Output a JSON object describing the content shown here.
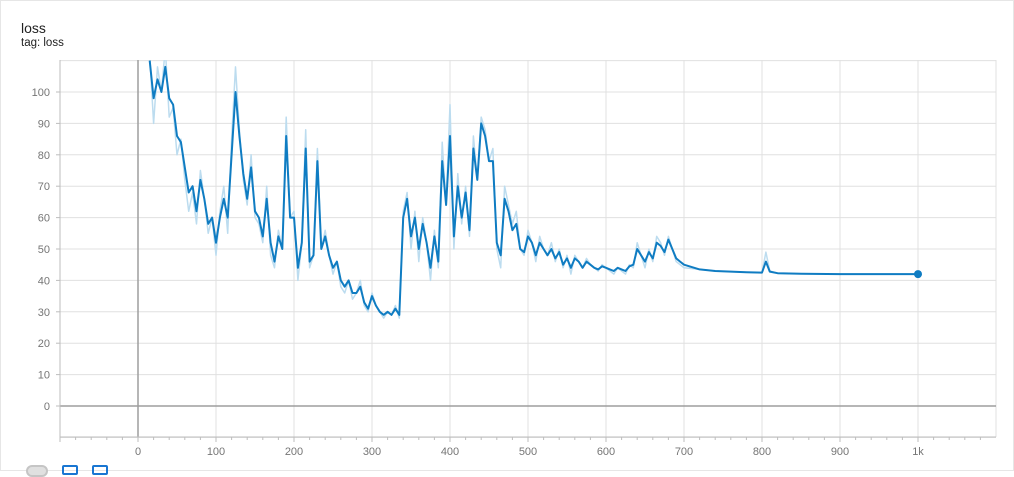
{
  "header": {
    "title": "loss",
    "subtitle": "tag: loss"
  },
  "toolbar": {
    "buttons": [
      "fit-domain-icon",
      "data-download-icon",
      "expand-icon"
    ]
  },
  "colors": {
    "smoothed": "#0f7cc2",
    "raw": "#bcdcef",
    "grid": "#e0e0e0",
    "axis": "#9e9e9e"
  },
  "chart_data": {
    "type": "line",
    "title": "loss",
    "xlabel": "",
    "ylabel": "",
    "xlim": [
      -100,
      1100
    ],
    "ylim": [
      -10,
      110
    ],
    "x_ticks": [
      0,
      100,
      200,
      300,
      400,
      500,
      600,
      700,
      800,
      900,
      1000
    ],
    "x_tick_labels": [
      "0",
      "100",
      "200",
      "300",
      "400",
      "500",
      "600",
      "700",
      "800",
      "900",
      "1k"
    ],
    "y_ticks": [
      0,
      10,
      20,
      30,
      40,
      50,
      60,
      70,
      80,
      90,
      100
    ],
    "y_tick_labels": [
      "0",
      "10",
      "20",
      "30",
      "40",
      "50",
      "60",
      "70",
      "80",
      "90",
      "100"
    ],
    "grid": true,
    "series": [
      {
        "role": "raw",
        "x": [
          15,
          20,
          25,
          30,
          35,
          40,
          45,
          50,
          55,
          60,
          65,
          70,
          75,
          80,
          85,
          90,
          95,
          100,
          105,
          110,
          115,
          120,
          125,
          130,
          135,
          140,
          145,
          150,
          155,
          160,
          165,
          170,
          175,
          180,
          185,
          190,
          195,
          200,
          205,
          210,
          215,
          220,
          225,
          230,
          235,
          240,
          245,
          250,
          255,
          260,
          265,
          270,
          275,
          280,
          285,
          290,
          295,
          300,
          305,
          310,
          315,
          320,
          325,
          330,
          335,
          340,
          345,
          350,
          355,
          360,
          365,
          370,
          375,
          380,
          385,
          390,
          395,
          400,
          405,
          410,
          415,
          420,
          425,
          430,
          435,
          440,
          445,
          450,
          455,
          460,
          465,
          470,
          475,
          480,
          485,
          490,
          495,
          500,
          505,
          510,
          515,
          520,
          525,
          530,
          535,
          540,
          545,
          550,
          555,
          560,
          565,
          570,
          575,
          580,
          585,
          590,
          595,
          600,
          605,
          610,
          615,
          620,
          625,
          630,
          635,
          640,
          645,
          650,
          655,
          660,
          665,
          670,
          675,
          680,
          685,
          690,
          695,
          700,
          720,
          740,
          760,
          780,
          800,
          805,
          810,
          820,
          850,
          900,
          950,
          1000
        ],
        "y": [
          112,
          90,
          108,
          100,
          114,
          92,
          95,
          80,
          85,
          72,
          62,
          68,
          58,
          75,
          66,
          55,
          60,
          48,
          62,
          70,
          55,
          85,
          108,
          88,
          72,
          64,
          80,
          60,
          58,
          52,
          70,
          48,
          44,
          56,
          50,
          92,
          60,
          62,
          40,
          52,
          88,
          44,
          48,
          82,
          50,
          56,
          48,
          42,
          46,
          38,
          36,
          40,
          34,
          36,
          40,
          32,
          30,
          36,
          32,
          30,
          28,
          30,
          29,
          32,
          28,
          62,
          68,
          50,
          62,
          46,
          60,
          52,
          40,
          56,
          44,
          84,
          64,
          96,
          50,
          74,
          58,
          70,
          54,
          86,
          72,
          92,
          88,
          78,
          82,
          50,
          44,
          70,
          64,
          58,
          62,
          50,
          48,
          56,
          52,
          46,
          54,
          50,
          48,
          52,
          46,
          50,
          44,
          48,
          42,
          48,
          46,
          44,
          47,
          45,
          44,
          43,
          45,
          44,
          43,
          42,
          44,
          43,
          42,
          45,
          44,
          52,
          48,
          44,
          50,
          46,
          54,
          52,
          48,
          54,
          50,
          46,
          45,
          44,
          43.5,
          43,
          42.8,
          42.6,
          42.5,
          49,
          43,
          42.3,
          42.1,
          42,
          42,
          42
        ]
      },
      {
        "role": "smoothed",
        "x": [
          15,
          20,
          25,
          30,
          35,
          40,
          45,
          50,
          55,
          60,
          65,
          70,
          75,
          80,
          85,
          90,
          95,
          100,
          105,
          110,
          115,
          120,
          125,
          130,
          135,
          140,
          145,
          150,
          155,
          160,
          165,
          170,
          175,
          180,
          185,
          190,
          195,
          200,
          205,
          210,
          215,
          220,
          225,
          230,
          235,
          240,
          245,
          250,
          255,
          260,
          265,
          270,
          275,
          280,
          285,
          290,
          295,
          300,
          305,
          310,
          315,
          320,
          325,
          330,
          335,
          340,
          345,
          350,
          355,
          360,
          365,
          370,
          375,
          380,
          385,
          390,
          395,
          400,
          405,
          410,
          415,
          420,
          425,
          430,
          435,
          440,
          445,
          450,
          455,
          460,
          465,
          470,
          475,
          480,
          485,
          490,
          495,
          500,
          505,
          510,
          515,
          520,
          525,
          530,
          535,
          540,
          545,
          550,
          555,
          560,
          565,
          570,
          575,
          580,
          585,
          590,
          595,
          600,
          605,
          610,
          615,
          620,
          625,
          630,
          635,
          640,
          645,
          650,
          655,
          660,
          665,
          670,
          675,
          680,
          685,
          690,
          695,
          700,
          720,
          740,
          760,
          780,
          800,
          805,
          810,
          820,
          850,
          900,
          950,
          1000
        ],
        "y": [
          110,
          98,
          104,
          100,
          108,
          98,
          96,
          86,
          84,
          76,
          68,
          70,
          62,
          72,
          66,
          58,
          60,
          52,
          60,
          66,
          60,
          80,
          100,
          86,
          74,
          66,
          76,
          62,
          60,
          54,
          66,
          52,
          46,
          54,
          50,
          86,
          60,
          60,
          44,
          52,
          82,
          46,
          48,
          78,
          50,
          54,
          48,
          44,
          46,
          40,
          38,
          40,
          36,
          36,
          38,
          33,
          31,
          35,
          32,
          30,
          29,
          30,
          29,
          31,
          29,
          60,
          66,
          54,
          60,
          50,
          58,
          52,
          44,
          54,
          46,
          78,
          64,
          86,
          54,
          70,
          60,
          68,
          56,
          82,
          72,
          90,
          86,
          78,
          78,
          52,
          48,
          66,
          62,
          56,
          58,
          50,
          49,
          54,
          52,
          48,
          52,
          50,
          48,
          50,
          47,
          49,
          45,
          47,
          44,
          47,
          46,
          44,
          46,
          45,
          44,
          43.5,
          44.5,
          44,
          43.5,
          43,
          44,
          43.5,
          43,
          44.5,
          45,
          50,
          48,
          46,
          49,
          47,
          52,
          51,
          49,
          53,
          50,
          47,
          46,
          45,
          43.5,
          43,
          42.8,
          42.6,
          42.5,
          46,
          42.8,
          42.3,
          42.1,
          42,
          42,
          42
        ]
      }
    ],
    "last_point": {
      "x": 1000,
      "y": 42
    }
  }
}
